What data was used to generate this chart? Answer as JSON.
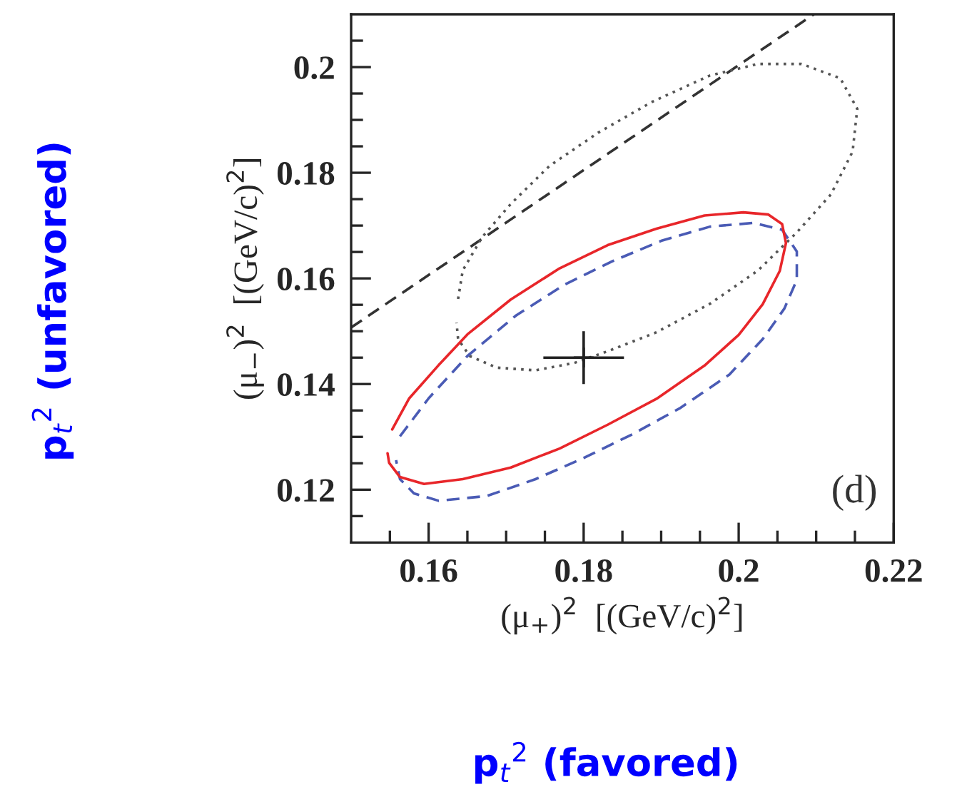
{
  "chart_data": {
    "type": "line",
    "xlabel": "(μ$_{+}$)$^{2}$  [(GeV/c)$^{2}$]",
    "ylabel": "(μ$_{−}$)$^{2}$  [(GeV/c)$^{2}$]",
    "annotations": [
      "(d)",
      "p$_{t}$$^{2}$ (favored)",
      "p$_{t}$$^{2}$ (unfavored)"
    ],
    "xlim": [
      0.15,
      0.22
    ],
    "ylim": [
      0.11,
      0.21
    ],
    "xticks": [
      {
        "value": 0.155,
        "label": null
      },
      0.16,
      {
        "value": 0.165,
        "label": null
      },
      {
        "value": 0.17,
        "label": null
      },
      {
        "value": 0.175,
        "label": null
      },
      0.18,
      {
        "value": 0.185,
        "label": null
      },
      {
        "value": 0.19,
        "label": null
      },
      {
        "value": 0.195,
        "label": null
      },
      0.2,
      {
        "value": 0.205,
        "label": null
      },
      {
        "value": 0.21,
        "label": null
      },
      {
        "value": 0.215,
        "label": null
      },
      0.22
    ],
    "yticks": [
      {
        "value": 0.115,
        "label": null
      },
      0.12,
      {
        "value": 0.125,
        "label": null
      },
      {
        "value": 0.13,
        "label": null
      },
      {
        "value": 0.135,
        "label": null
      },
      0.14,
      {
        "value": 0.145,
        "label": null
      },
      {
        "value": 0.15,
        "label": null
      },
      {
        "value": 0.155,
        "label": null
      },
      0.16,
      {
        "value": 0.165,
        "label": null
      },
      {
        "value": 0.17,
        "label": null
      },
      {
        "value": 0.175,
        "label": null
      },
      0.18,
      {
        "value": 0.185,
        "label": null
      },
      {
        "value": 0.19,
        "label": null
      },
      {
        "value": 0.195,
        "label": null
      },
      0.2,
      {
        "value": 0.205,
        "label": null
      }
    ],
    "series": [
      {
        "color": "#333333",
        "line_style": "dashed",
        "x": [
          0.15,
          0.2097
        ],
        "values": [
          0.1507,
          0.21
        ]
      },
      {
        "color": "#555555",
        "line_style": "dotted",
        "x": [
          0.1638,
          0.1644,
          0.1669,
          0.1706,
          0.1756,
          0.1819,
          0.1888,
          0.1963,
          0.2025,
          0.2081,
          0.2131,
          0.2153,
          0.2147,
          0.2119,
          0.2075,
          0.2025,
          0.1963,
          0.1894,
          0.1831,
          0.1788,
          0.1738,
          0.1688,
          0.1653,
          0.1638,
          0.1636
        ],
        "values": [
          0.1561,
          0.1615,
          0.1678,
          0.1741,
          0.1813,
          0.1876,
          0.1934,
          0.1984,
          0.2006,
          0.2006,
          0.1979,
          0.1921,
          0.184,
          0.1759,
          0.1687,
          0.1615,
          0.1552,
          0.1498,
          0.1462,
          0.144,
          0.1426,
          0.1431,
          0.1453,
          0.1485,
          0.1516
        ]
      },
      {
        "color": "#4a5bb5",
        "line_style": "dashed",
        "x": [
          0.1563,
          0.16,
          0.165,
          0.1713,
          0.1775,
          0.1838,
          0.19,
          0.1963,
          0.2019,
          0.2056,
          0.2075,
          0.2075,
          0.2059,
          0.2031,
          0.1988,
          0.1925,
          0.1863,
          0.18,
          0.1738,
          0.1675,
          0.1613,
          0.1581,
          0.1563,
          0.1558
        ],
        "values": [
          0.1301,
          0.1373,
          0.1453,
          0.153,
          0.1588,
          0.1633,
          0.1671,
          0.1698,
          0.1705,
          0.1692,
          0.1651,
          0.1597,
          0.1543,
          0.1485,
          0.1418,
          0.1355,
          0.1305,
          0.126,
          0.122,
          0.1188,
          0.1179,
          0.1193,
          0.122,
          0.1256
        ]
      },
      {
        "color": "#e8262a",
        "line_style": "solid",
        "x": [
          0.1553,
          0.1575,
          0.1613,
          0.165,
          0.1706,
          0.1769,
          0.1831,
          0.1894,
          0.1956,
          0.2006,
          0.2038,
          0.2056,
          0.2061,
          0.2053,
          0.2031,
          0.2,
          0.1956,
          0.1894,
          0.1831,
          0.1769,
          0.1706,
          0.1644,
          0.1594,
          0.1563,
          0.1549,
          0.1547
        ],
        "values": [
          0.1314,
          0.1373,
          0.1436,
          0.1494,
          0.156,
          0.1619,
          0.1663,
          0.1694,
          0.1719,
          0.1725,
          0.1721,
          0.1703,
          0.1667,
          0.1614,
          0.1551,
          0.1493,
          0.1435,
          0.1372,
          0.1323,
          0.1278,
          0.1242,
          0.122,
          0.1211,
          0.1224,
          0.1251,
          0.1269
        ]
      },
      {
        "type": "scatter",
        "color": "#222222",
        "marker": "cross",
        "x": [
          0.18
        ],
        "values": [
          0.145
        ],
        "errors": [
          0.005
        ],
        "xerrors": [
          0.0052
        ]
      }
    ]
  }
}
